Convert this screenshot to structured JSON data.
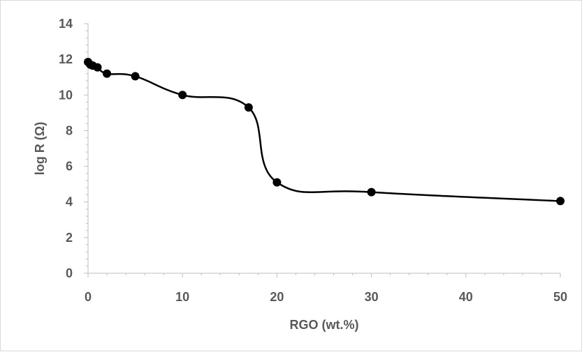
{
  "chart_data": {
    "type": "scatter",
    "title": "",
    "xlabel": "RGO (wt.%)",
    "ylabel": "log R (Ω)",
    "xlim": [
      0,
      50
    ],
    "ylim": [
      0,
      14
    ],
    "x_ticks": [
      "0",
      "10",
      "20",
      "30",
      "40",
      "50"
    ],
    "y_ticks": [
      "0",
      "2",
      "4",
      "6",
      "8",
      "10",
      "12",
      "14"
    ],
    "grid": false,
    "legend": "none",
    "line": "smooth",
    "series": [
      {
        "points": [
          {
            "x": 0,
            "y": 11.85
          },
          {
            "x": 0.25,
            "y": 11.7
          },
          {
            "x": 0.5,
            "y": 11.65
          },
          {
            "x": 1,
            "y": 11.55
          },
          {
            "x": 2,
            "y": 11.2
          },
          {
            "x": 5,
            "y": 11.05
          },
          {
            "x": 10,
            "y": 10.0
          },
          {
            "x": 17,
            "y": 9.3
          },
          {
            "x": 20,
            "y": 5.1
          },
          {
            "x": 30,
            "y": 4.55
          },
          {
            "x": 50,
            "y": 4.05
          }
        ],
        "color": "#000000"
      }
    ]
  }
}
